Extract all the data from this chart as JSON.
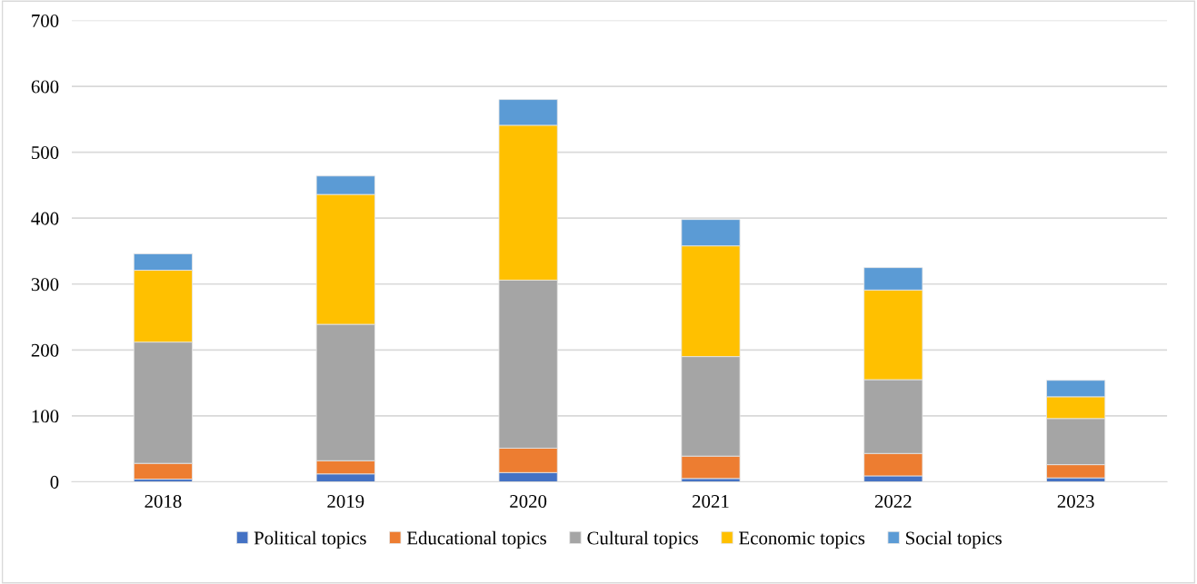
{
  "chart_data": {
    "type": "bar",
    "stacked": true,
    "categories": [
      "2018",
      "2019",
      "2020",
      "2021",
      "2022",
      "2023"
    ],
    "series": [
      {
        "name": "Political topics",
        "color": "#4472c4",
        "values": [
          4,
          12,
          14,
          5,
          9,
          6
        ]
      },
      {
        "name": "Educational topics",
        "color": "#ed7d31",
        "values": [
          24,
          20,
          37,
          34,
          34,
          20
        ]
      },
      {
        "name": "Cultural topics",
        "color": "#a5a5a5",
        "values": [
          184,
          207,
          255,
          151,
          112,
          70
        ]
      },
      {
        "name": "Economic topics",
        "color": "#ffc000",
        "values": [
          109,
          197,
          235,
          168,
          136,
          33
        ]
      },
      {
        "name": "Social topics",
        "color": "#5b9bd5",
        "values": [
          25,
          28,
          39,
          40,
          34,
          25
        ]
      }
    ],
    "ylim": [
      0,
      700
    ],
    "yticks": [
      0,
      100,
      200,
      300,
      400,
      500,
      600,
      700
    ],
    "grid": "y",
    "legend": "bottom"
  }
}
